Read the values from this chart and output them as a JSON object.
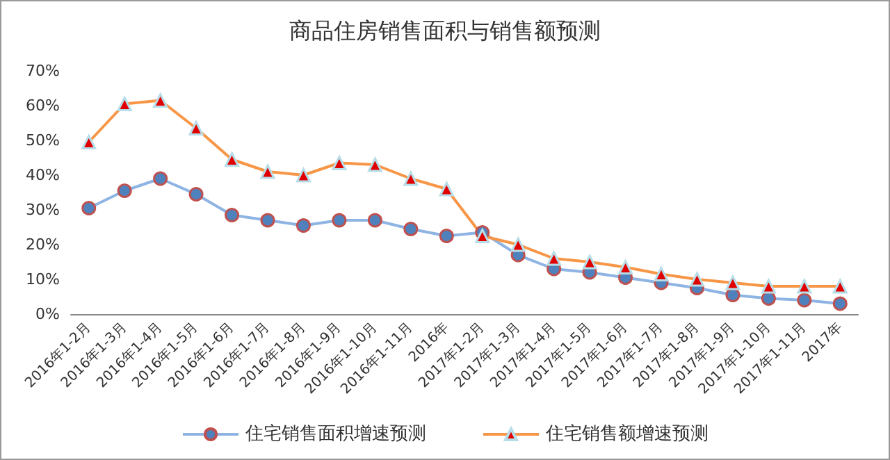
{
  "chart_data": {
    "type": "line",
    "title": "商品住房销售面积与销售额预测",
    "categories": [
      "2016年1-2月",
      "2016年1-3月",
      "2016年1-4月",
      "2016年1-5月",
      "2016年1-6月",
      "2016年1-7月",
      "2016年1-8月",
      "2016年1-9月",
      "2016年1-10月",
      "2016年1-11月",
      "2016年",
      "2017年1-2月",
      "2017年1-3月",
      "2017年1-4月",
      "2017年1-5月",
      "2017年1-6月",
      "2017年1-7月",
      "2017年1-8月",
      "2017年1-9月",
      "2017年1-10月",
      "2017年1-11月",
      "2017年"
    ],
    "series": [
      {
        "name": "住宅销售面积增速预测",
        "color": "#8eb4e3",
        "marker": "circle",
        "values": [
          30.5,
          35.5,
          39,
          34.5,
          28.5,
          27,
          25.5,
          27,
          27,
          24.5,
          22.5,
          23.5,
          17,
          13,
          12,
          10.5,
          9,
          7.5,
          5.5,
          4.5,
          4,
          3
        ]
      },
      {
        "name": "住宅销售额增速预测",
        "color": "#f79646",
        "marker": "triangle",
        "values": [
          49.5,
          60.5,
          61.5,
          53.5,
          44.5,
          41,
          40,
          43.5,
          43,
          39,
          36,
          22.5,
          20,
          16,
          15,
          13.5,
          11.5,
          10,
          9,
          8,
          8,
          8
        ]
      }
    ],
    "ylim": [
      0,
      70
    ],
    "yticks": [
      {
        "value": 0,
        "label": "0%"
      },
      {
        "value": 10,
        "label": "10%"
      },
      {
        "value": 20,
        "label": "20%"
      },
      {
        "value": 30,
        "label": "30%"
      },
      {
        "value": 40,
        "label": "40%"
      },
      {
        "value": 50,
        "label": "50%"
      },
      {
        "value": 60,
        "label": "60%"
      },
      {
        "value": 70,
        "label": "70%"
      }
    ],
    "grid": false,
    "legend": "bottom"
  }
}
